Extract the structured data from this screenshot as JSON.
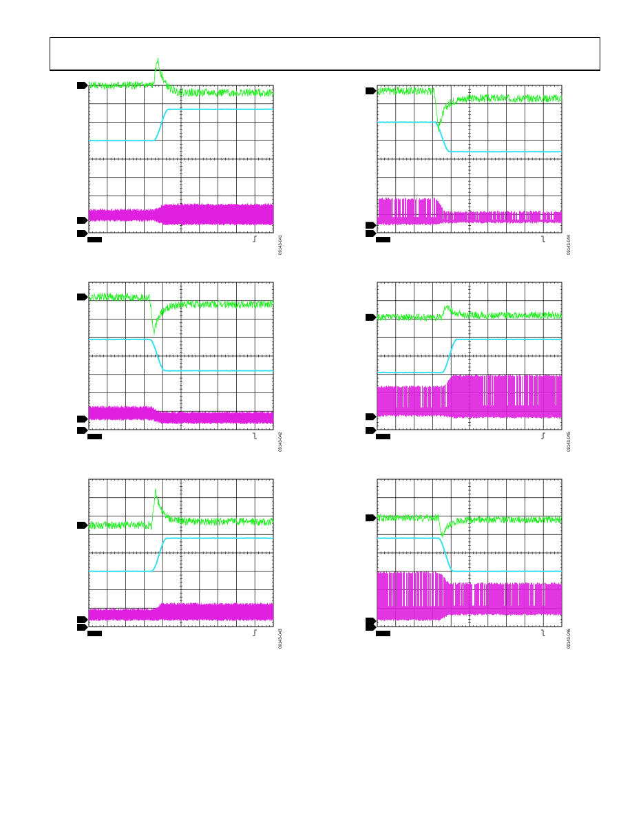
{
  "colors": {
    "ch1": "#22ee22",
    "ch2": "#33e0f0",
    "ch3": "#e020e0",
    "grid": "#000000",
    "background": "#ffffff"
  },
  "trigger_icon_names": [
    "rising-edge-icon",
    "falling-edge-icon"
  ],
  "scopes": [
    {
      "fig_id": "09143-041",
      "trigger": "rising",
      "chart_data": {
        "type": "line",
        "series": [
          {
            "channel": "ch1",
            "level_before": 8.0,
            "level_after": 7.6,
            "spike": 9.45,
            "noise": 0.22
          },
          {
            "channel": "ch2",
            "level_before": 5.0,
            "level_after": 6.7,
            "noise": 0.02
          },
          {
            "channel": "ch3",
            "band_before": [
              0.6,
              1.3
            ],
            "band_after": [
              0.4,
              1.6
            ]
          }
        ],
        "step_division": 3.5,
        "divisions_x": 10,
        "divisions_y": 8
      }
    },
    {
      "fig_id": "09143-044",
      "trigger": "falling",
      "chart_data": {
        "type": "line",
        "series": [
          {
            "channel": "ch1",
            "level_before": 7.7,
            "level_after": 7.3,
            "spike": 5.6,
            "noise": 0.22
          },
          {
            "channel": "ch2",
            "level_before": 6.0,
            "level_after": 4.4,
            "noise": 0.02
          },
          {
            "channel": "ch3",
            "band_before": [
              0.4,
              1.9
            ],
            "band_after": [
              0.5,
              1.2
            ]
          }
        ],
        "step_division": 3.1,
        "divisions_x": 10,
        "divisions_y": 8
      }
    },
    {
      "fig_id": "09143-042",
      "trigger": "falling",
      "chart_data": {
        "type": "line",
        "series": [
          {
            "channel": "ch1",
            "level_before": 7.2,
            "level_after": 6.8,
            "spike": 5.2,
            "noise": 0.22
          },
          {
            "channel": "ch2",
            "level_before": 4.9,
            "level_after": 3.2,
            "noise": 0.02
          },
          {
            "channel": "ch3",
            "band_before": [
              0.5,
              1.3
            ],
            "band_after": [
              0.3,
              1.0
            ]
          }
        ],
        "step_division": 3.3,
        "divisions_x": 10,
        "divisions_y": 8
      }
    },
    {
      "fig_id": "09143-045",
      "trigger": "rising",
      "chart_data": {
        "type": "line",
        "series": [
          {
            "channel": "ch1",
            "level_before": 6.1,
            "level_after": 6.2,
            "spike": 6.8,
            "noise": 0.2
          },
          {
            "channel": "ch2",
            "level_before": 3.1,
            "level_after": 4.9,
            "noise": 0.02
          },
          {
            "channel": "ch3",
            "band_before": [
              0.7,
              2.4
            ],
            "band_after": [
              0.6,
              3.0
            ]
          }
        ],
        "step_division": 3.5,
        "divisions_x": 10,
        "divisions_y": 8
      }
    },
    {
      "fig_id": "09143-043",
      "trigger": "rising",
      "chart_data": {
        "type": "line",
        "series": [
          {
            "channel": "ch1",
            "level_before": 5.5,
            "level_after": 5.7,
            "spike": 7.4,
            "noise": 0.22
          },
          {
            "channel": "ch2",
            "level_before": 3.0,
            "level_after": 4.8,
            "noise": 0.02
          },
          {
            "channel": "ch3",
            "band_before": [
              0.3,
              1.0
            ],
            "band_after": [
              0.3,
              1.3
            ]
          }
        ],
        "step_division": 3.4,
        "divisions_x": 10,
        "divisions_y": 8
      }
    },
    {
      "fig_id": "09143-046",
      "trigger": "falling",
      "chart_data": {
        "type": "line",
        "series": [
          {
            "channel": "ch1",
            "level_before": 5.9,
            "level_after": 5.8,
            "spike": 4.9,
            "noise": 0.2
          },
          {
            "channel": "ch2",
            "level_before": 4.8,
            "level_after": 3.0,
            "noise": 0.02
          },
          {
            "channel": "ch3",
            "band_before": [
              0.3,
              3.0
            ],
            "band_after": [
              0.6,
              2.4
            ]
          }
        ],
        "step_division": 3.3,
        "divisions_x": 10,
        "divisions_y": 8
      }
    }
  ]
}
